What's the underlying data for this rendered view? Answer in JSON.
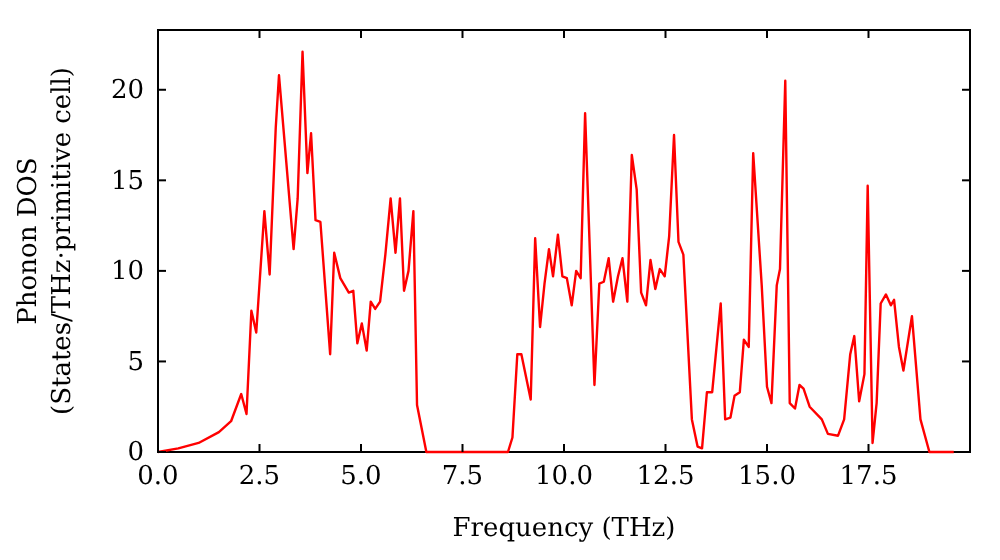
{
  "chart_data": {
    "type": "line",
    "xlabel": "Frequency (THz)",
    "ylabel": "Phonon DOS\n(States/THz·primitive cell)",
    "xlim": [
      0,
      20
    ],
    "ylim": [
      0,
      23.3
    ],
    "xticks": [
      {
        "value": 0,
        "label": "0.0"
      },
      {
        "value": 2.5,
        "label": "2.5"
      },
      {
        "value": 5,
        "label": "5.0"
      },
      {
        "value": 7.5,
        "label": "7.5"
      },
      {
        "value": 10,
        "label": "10.0"
      },
      {
        "value": 12.5,
        "label": "12.5"
      },
      {
        "value": 15,
        "label": "15.0"
      },
      {
        "value": 17.5,
        "label": "17.5"
      }
    ],
    "yticks": [
      0,
      5,
      10,
      15,
      20
    ],
    "grid": false,
    "marker": "none",
    "line_style": "solid",
    "x": [
      0,
      0.5,
      1.0,
      1.5,
      1.8,
      2.05,
      2.18,
      2.3,
      2.42,
      2.62,
      2.75,
      2.9,
      2.98,
      3.34,
      3.44,
      3.56,
      3.68,
      3.77,
      3.88,
      4.0,
      4.24,
      4.34,
      4.49,
      4.7,
      4.81,
      4.91,
      5.02,
      5.14,
      5.24,
      5.35,
      5.47,
      5.6,
      5.73,
      5.85,
      5.96,
      6.06,
      6.17,
      6.29,
      6.38,
      6.61,
      8.62,
      8.73,
      8.85,
      8.95,
      9.18,
      9.29,
      9.41,
      9.52,
      9.63,
      9.73,
      9.85,
      9.96,
      10.07,
      10.19,
      10.3,
      10.41,
      10.52,
      10.75,
      10.87,
      10.98,
      11.1,
      11.21,
      11.33,
      11.44,
      11.56,
      11.67,
      11.79,
      11.9,
      12.02,
      12.13,
      12.25,
      12.36,
      12.48,
      12.59,
      12.71,
      12.82,
      12.94,
      13.15,
      13.29,
      13.4,
      13.52,
      13.65,
      13.86,
      13.97,
      14.1,
      14.2,
      14.33,
      14.43,
      14.55,
      14.66,
      14.87,
      15.0,
      15.11,
      15.24,
      15.32,
      15.45,
      15.56,
      15.69,
      15.8,
      15.9,
      16.05,
      16.35,
      16.5,
      16.75,
      16.9,
      17.05,
      17.15,
      17.27,
      17.4,
      17.48,
      17.6,
      17.7,
      17.8,
      17.93,
      18.05,
      18.13,
      18.25,
      18.36,
      18.57,
      18.78,
      19.0,
      19.6
    ],
    "series": [
      {
        "color": "#ff0000",
        "values": [
          0,
          0.2,
          0.5,
          1.1,
          1.7,
          3.2,
          2.1,
          7.8,
          6.6,
          13.3,
          9.8,
          17.9,
          20.8,
          11.2,
          14,
          22.1,
          15.4,
          17.6,
          12.8,
          12.7,
          5.4,
          11,
          9.6,
          8.8,
          8.9,
          6.0,
          7.1,
          5.6,
          8.3,
          7.9,
          8.3,
          10.9,
          14,
          11,
          14,
          8.9,
          10,
          13.3,
          2.6,
          0,
          0,
          0.8,
          5.4,
          5.4,
          2.9,
          11.8,
          6.9,
          9.3,
          11.2,
          9.7,
          12.0,
          9.7,
          9.6,
          8.1,
          10,
          9.6,
          18.7,
          3.7,
          9.3,
          9.4,
          10.7,
          8.3,
          9.7,
          10.7,
          8.3,
          16.4,
          14.5,
          8.8,
          8.1,
          10.6,
          9,
          10.1,
          9.7,
          11.9,
          17.5,
          11.6,
          10.9,
          1.8,
          0.3,
          0.2,
          3.3,
          3.3,
          8.2,
          1.8,
          1.9,
          3.1,
          3.3,
          6.2,
          5.8,
          16.5,
          9.2,
          3.6,
          2.7,
          9.2,
          10.1,
          20.5,
          2.7,
          2.4,
          3.7,
          3.5,
          2.5,
          1.8,
          1.0,
          0.9,
          1.8,
          5.4,
          6.4,
          2.8,
          4.3,
          14.7,
          0.5,
          2.7,
          8.2,
          8.7,
          8.1,
          8.4,
          5.8,
          4.5,
          7.5,
          1.8,
          0,
          0
        ]
      }
    ]
  }
}
